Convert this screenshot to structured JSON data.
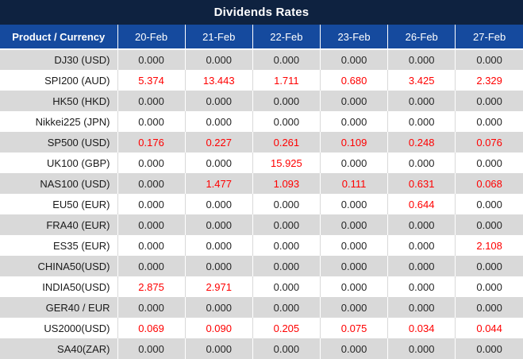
{
  "title": "Dividends Rates",
  "colors": {
    "title_bg": "#0e2240",
    "header_bg": "#154a9e",
    "alt_row_bg": "#d9d9d9",
    "zero_value_text": "#262626",
    "nonzero_value_text": "#ff0000"
  },
  "table": {
    "product_header": "Product / Currency",
    "date_columns": [
      "20-Feb",
      "21-Feb",
      "22-Feb",
      "23-Feb",
      "26-Feb",
      "27-Feb"
    ],
    "rows": [
      {
        "product": "DJ30 (USD)",
        "values": [
          "0.000",
          "0.000",
          "0.000",
          "0.000",
          "0.000",
          "0.000"
        ]
      },
      {
        "product": "SPI200 (AUD)",
        "values": [
          "5.374",
          "13.443",
          "1.711",
          "0.680",
          "3.425",
          "2.329"
        ]
      },
      {
        "product": "HK50 (HKD)",
        "values": [
          "0.000",
          "0.000",
          "0.000",
          "0.000",
          "0.000",
          "0.000"
        ]
      },
      {
        "product": "Nikkei225 (JPN)",
        "values": [
          "0.000",
          "0.000",
          "0.000",
          "0.000",
          "0.000",
          "0.000"
        ]
      },
      {
        "product": "SP500 (USD)",
        "values": [
          "0.176",
          "0.227",
          "0.261",
          "0.109",
          "0.248",
          "0.076"
        ]
      },
      {
        "product": "UK100 (GBP)",
        "values": [
          "0.000",
          "0.000",
          "15.925",
          "0.000",
          "0.000",
          "0.000"
        ]
      },
      {
        "product": "NAS100 (USD)",
        "values": [
          "0.000",
          "1.477",
          "1.093",
          "0.111",
          "0.631",
          "0.068"
        ]
      },
      {
        "product": "EU50 (EUR)",
        "values": [
          "0.000",
          "0.000",
          "0.000",
          "0.000",
          "0.644",
          "0.000"
        ]
      },
      {
        "product": "FRA40 (EUR)",
        "values": [
          "0.000",
          "0.000",
          "0.000",
          "0.000",
          "0.000",
          "0.000"
        ]
      },
      {
        "product": "ES35 (EUR)",
        "values": [
          "0.000",
          "0.000",
          "0.000",
          "0.000",
          "0.000",
          "2.108"
        ]
      },
      {
        "product": "CHINA50(USD)",
        "values": [
          "0.000",
          "0.000",
          "0.000",
          "0.000",
          "0.000",
          "0.000"
        ]
      },
      {
        "product": "INDIA50(USD)",
        "values": [
          "2.875",
          "2.971",
          "0.000",
          "0.000",
          "0.000",
          "0.000"
        ]
      },
      {
        "product": "GER40 / EUR",
        "values": [
          "0.000",
          "0.000",
          "0.000",
          "0.000",
          "0.000",
          "0.000"
        ]
      },
      {
        "product": "US2000(USD)",
        "values": [
          "0.069",
          "0.090",
          "0.205",
          "0.075",
          "0.034",
          "0.044"
        ]
      },
      {
        "product": "SA40(ZAR)",
        "values": [
          "0.000",
          "0.000",
          "0.000",
          "0.000",
          "0.000",
          "0.000"
        ]
      }
    ]
  }
}
